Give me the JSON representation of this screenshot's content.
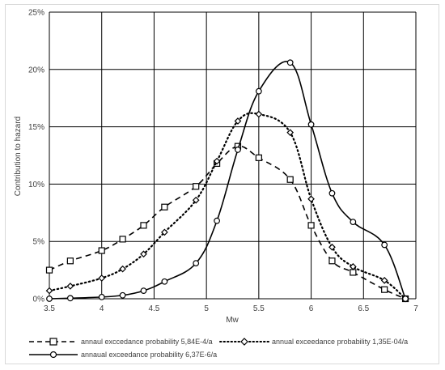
{
  "chart_data": {
    "type": "line",
    "title": "",
    "xlabel": "Mw",
    "ylabel": "Contribution to hazard",
    "xlim": [
      3.5,
      7
    ],
    "ylim": [
      0,
      25
    ],
    "x_ticks": [
      "3.5",
      "4",
      "4.5",
      "5",
      "5.5",
      "6",
      "6.5",
      "7"
    ],
    "y_ticks": [
      "0%",
      "5%",
      "10%",
      "15%",
      "20%",
      "25%"
    ],
    "grid": true,
    "legend_position": "bottom",
    "series": [
      {
        "name": "annaul exccedance probability 5,84E-4/a",
        "line_style": "dashed",
        "marker": "square",
        "x": [
          3.5,
          3.7,
          4.0,
          4.2,
          4.4,
          4.6,
          4.9,
          5.1,
          5.3,
          5.5,
          5.8,
          6.0,
          6.2,
          6.4,
          6.7,
          6.9
        ],
        "y": [
          2.5,
          3.3,
          4.2,
          5.2,
          6.4,
          8.0,
          9.8,
          11.8,
          13.3,
          12.3,
          10.4,
          6.4,
          3.3,
          2.3,
          0.8,
          0.0
        ]
      },
      {
        "name": "annual exceedance probability 1,35E-04/a",
        "line_style": "dotted",
        "marker": "diamond",
        "x": [
          3.5,
          3.7,
          4.0,
          4.2,
          4.4,
          4.6,
          4.9,
          5.1,
          5.3,
          5.5,
          5.8,
          6.0,
          6.2,
          6.4,
          6.7,
          6.9
        ],
        "y": [
          0.7,
          1.1,
          1.8,
          2.6,
          3.9,
          5.8,
          8.6,
          12.0,
          15.5,
          16.1,
          14.5,
          8.7,
          4.5,
          2.8,
          1.6,
          0.0
        ]
      },
      {
        "name": "annaual exceedance probability 6,37E-6/a",
        "line_style": "solid",
        "marker": "circle",
        "x": [
          3.5,
          3.7,
          4.0,
          4.2,
          4.4,
          4.6,
          4.9,
          5.1,
          5.3,
          5.5,
          5.8,
          6.0,
          6.2,
          6.4,
          6.7,
          6.9
        ],
        "y": [
          0.0,
          0.05,
          0.15,
          0.3,
          0.7,
          1.5,
          3.1,
          6.8,
          13.0,
          18.1,
          20.6,
          15.2,
          9.2,
          6.7,
          4.7,
          0.0
        ]
      }
    ]
  }
}
